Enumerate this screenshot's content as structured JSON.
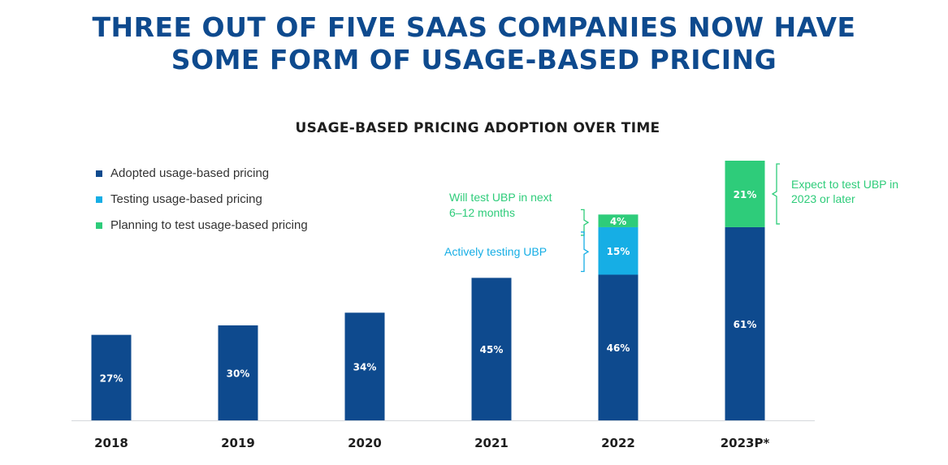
{
  "headline": {
    "line1": "THREE OUT OF FIVE SAAS COMPANIES NOW HAVE",
    "line2": "SOME FORM OF USAGE-BASED PRICING"
  },
  "legend": [
    {
      "label": "Adopted usage-based pricing",
      "color": "#0e4a8e"
    },
    {
      "label": "Testing usage-based pricing",
      "color": "#16aee5"
    },
    {
      "label": "Planning to test usage-based pricing",
      "color": "#2ecc7a"
    }
  ],
  "annotations": {
    "will_test": [
      "Will test UBP in next",
      "6–12 months"
    ],
    "actively_testing": "Actively testing UBP",
    "expect_to_test": [
      "Expect to test UBP in",
      "2023 or later"
    ]
  },
  "colors": {
    "adopted": "#0e4a8e",
    "testing": "#16aee5",
    "planning": "#2ecc7a",
    "headline": "#0e4a8e"
  },
  "chart_data": {
    "type": "bar",
    "stacked": true,
    "title": "USAGE-BASED PRICING ADOPTION OVER TIME",
    "categories": [
      "2018",
      "2019",
      "2020",
      "2021",
      "2022",
      "2023P*"
    ],
    "series": [
      {
        "name": "Adopted usage-based pricing",
        "values": [
          27,
          30,
          34,
          45,
          46,
          61
        ],
        "labels": [
          "27%",
          "30%",
          "34%",
          "45%",
          "46%",
          "61%"
        ]
      },
      {
        "name": "Testing usage-based pricing",
        "values": [
          0,
          0,
          0,
          0,
          15,
          0
        ],
        "labels": [
          "",
          "",
          "",
          "",
          "15%",
          ""
        ]
      },
      {
        "name": "Planning to test usage-based pricing",
        "values": [
          0,
          0,
          0,
          0,
          4,
          21
        ],
        "labels": [
          "",
          "",
          "",
          "",
          "4%",
          "21%"
        ]
      }
    ],
    "ylim": [
      0,
      82
    ],
    "grid": false,
    "legend_position": "top-left"
  }
}
